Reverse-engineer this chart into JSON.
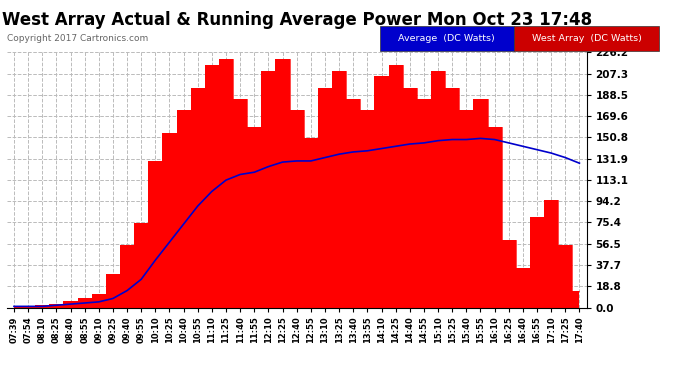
{
  "title": "West Array Actual & Running Average Power Mon Oct 23 17:48",
  "copyright": "Copyright 2017 Cartronics.com",
  "ylabel_right_ticks": [
    0.0,
    18.8,
    37.7,
    56.5,
    75.4,
    94.2,
    113.1,
    131.9,
    150.8,
    169.6,
    188.5,
    207.3,
    226.2
  ],
  "ymax": 226.2,
  "ymin": 0.0,
  "bg_color": "#ffffff",
  "plot_bg_color": "#ffffff",
  "grid_color": "#bbbbbb",
  "bar_color": "#ff0000",
  "line_color": "#0000cc",
  "title_fontsize": 12,
  "x_times": [
    "07:39",
    "07:54",
    "08:10",
    "08:25",
    "08:40",
    "08:55",
    "09:10",
    "09:25",
    "09:40",
    "09:55",
    "10:10",
    "10:25",
    "10:40",
    "10:55",
    "11:10",
    "11:25",
    "11:40",
    "11:55",
    "12:10",
    "12:25",
    "12:40",
    "12:55",
    "13:10",
    "13:25",
    "13:40",
    "13:55",
    "14:10",
    "14:25",
    "14:40",
    "14:55",
    "15:10",
    "15:25",
    "15:40",
    "15:55",
    "16:10",
    "16:25",
    "16:40",
    "16:55",
    "17:10",
    "17:25",
    "17:40"
  ],
  "west_array": [
    1,
    1,
    2,
    3,
    6,
    8,
    12,
    30,
    55,
    75,
    130,
    155,
    175,
    195,
    215,
    220,
    185,
    160,
    210,
    220,
    175,
    150,
    195,
    210,
    185,
    175,
    205,
    215,
    195,
    185,
    210,
    195,
    175,
    185,
    160,
    60,
    35,
    80,
    95,
    55,
    15
  ],
  "avg_array": [
    1,
    1,
    1,
    2,
    3,
    4,
    5,
    8,
    15,
    25,
    42,
    58,
    74,
    90,
    103,
    113,
    118,
    120,
    125,
    129,
    130,
    130,
    133,
    136,
    138,
    139,
    141,
    143,
    145,
    146,
    148,
    149,
    149,
    150,
    149,
    146,
    143,
    140,
    137,
    133,
    128
  ]
}
